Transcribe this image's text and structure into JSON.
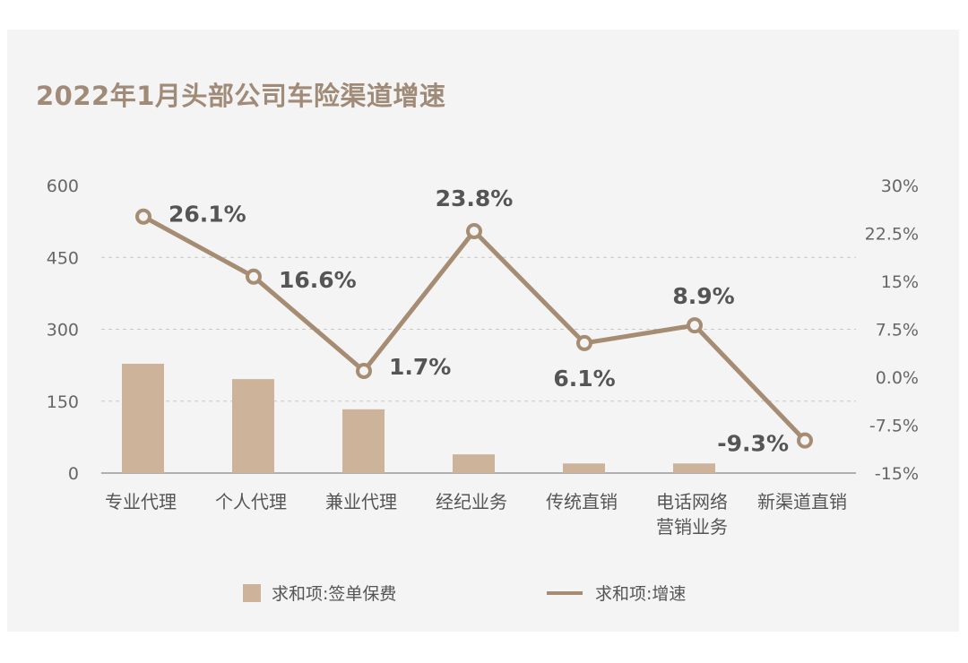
{
  "chart_data": {
    "type": "bar+line",
    "title": "2022年1月头部公司车险渠道增速",
    "categories": [
      "专业代理",
      "个人代理",
      "兼业代理",
      "经纪业务",
      "传统直销",
      "电话网络\n营销业务",
      "新渠道直销"
    ],
    "series": [
      {
        "name": "求和项:签单保费",
        "type": "bar",
        "axis": "left",
        "values": [
          228,
          196,
          133,
          39,
          20,
          20,
          0
        ]
      },
      {
        "name": "求和项:增速",
        "type": "line",
        "axis": "right",
        "values": [
          26.1,
          16.6,
          1.7,
          23.8,
          6.1,
          8.9,
          -9.3
        ],
        "labels": [
          "26.1%",
          "16.6%",
          "1.7%",
          "23.8%",
          "6.1%",
          "8.9%",
          "-9.3%"
        ]
      }
    ],
    "left_axis": {
      "ylim": [
        0,
        600
      ],
      "ticks": [
        "0",
        "150",
        "300",
        "450",
        "600"
      ]
    },
    "right_axis": {
      "ylim": [
        -15,
        30
      ],
      "ticks": [
        "-15%",
        "-7.5%",
        "0.0%",
        "7.5%",
        "15%",
        "22.5%",
        "30%"
      ]
    },
    "grid": "dashed horizontal",
    "legend": "bottom",
    "colors": {
      "bar": "#cdb399",
      "line": "#a58c73",
      "title": "#a08a78",
      "text": "#555555"
    }
  }
}
